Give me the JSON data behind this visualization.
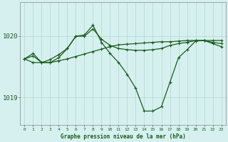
{
  "title": "Graphe pression niveau de la mer (hPa)",
  "bg_color": "#d6f0f0",
  "grid_color": "#b0d8cc",
  "line_color": "#1a5c1a",
  "xlim": [
    -0.5,
    23.5
  ],
  "ylim": [
    1018.55,
    1020.55
  ],
  "yticks": [
    1019.0,
    1020.0
  ],
  "xticks": [
    0,
    1,
    2,
    3,
    4,
    5,
    6,
    7,
    8,
    9,
    10,
    11,
    12,
    13,
    14,
    15,
    16,
    17,
    18,
    19,
    20,
    21,
    22,
    23
  ],
  "line1_x": [
    0,
    1,
    2,
    3,
    4,
    5,
    6,
    7,
    8,
    9,
    10,
    11,
    12,
    13,
    14,
    15,
    16,
    17,
    18,
    19,
    20,
    21,
    22,
    23
  ],
  "line1_y": [
    1019.63,
    1019.68,
    1019.57,
    1019.57,
    1019.6,
    1019.63,
    1019.67,
    1019.71,
    1019.75,
    1019.79,
    1019.83,
    1019.86,
    1019.87,
    1019.88,
    1019.89,
    1019.9,
    1019.91,
    1019.91,
    1019.92,
    1019.93,
    1019.93,
    1019.93,
    1019.93,
    1019.93
  ],
  "line2_x": [
    0,
    1,
    2,
    3,
    4,
    5,
    6,
    7,
    8,
    9,
    10,
    11,
    12,
    13,
    14,
    15,
    16,
    17,
    18,
    19,
    20,
    21,
    22,
    23
  ],
  "line2_y": [
    1019.63,
    1019.57,
    1019.57,
    1019.62,
    1019.7,
    1019.8,
    1020.0,
    1020.0,
    1020.12,
    1019.95,
    1019.85,
    1019.8,
    1019.78,
    1019.77,
    1019.77,
    1019.78,
    1019.8,
    1019.85,
    1019.88,
    1019.9,
    1019.93,
    1019.93,
    1019.9,
    1019.88
  ],
  "line3_x": [
    0,
    1,
    2,
    3,
    4,
    5,
    6,
    7,
    8,
    9,
    10,
    11,
    12,
    13,
    14,
    15,
    16,
    17,
    18,
    19,
    20,
    21,
    22,
    23
  ],
  "line3_y": [
    1019.63,
    1019.72,
    1019.57,
    1019.57,
    1019.65,
    1019.8,
    1020.0,
    1020.02,
    1020.18,
    1019.9,
    1019.72,
    1019.57,
    1019.38,
    1019.15,
    1018.78,
    1018.78,
    1018.85,
    1019.25,
    1019.65,
    1019.78,
    1019.92,
    1019.93,
    1019.88,
    1019.83
  ]
}
